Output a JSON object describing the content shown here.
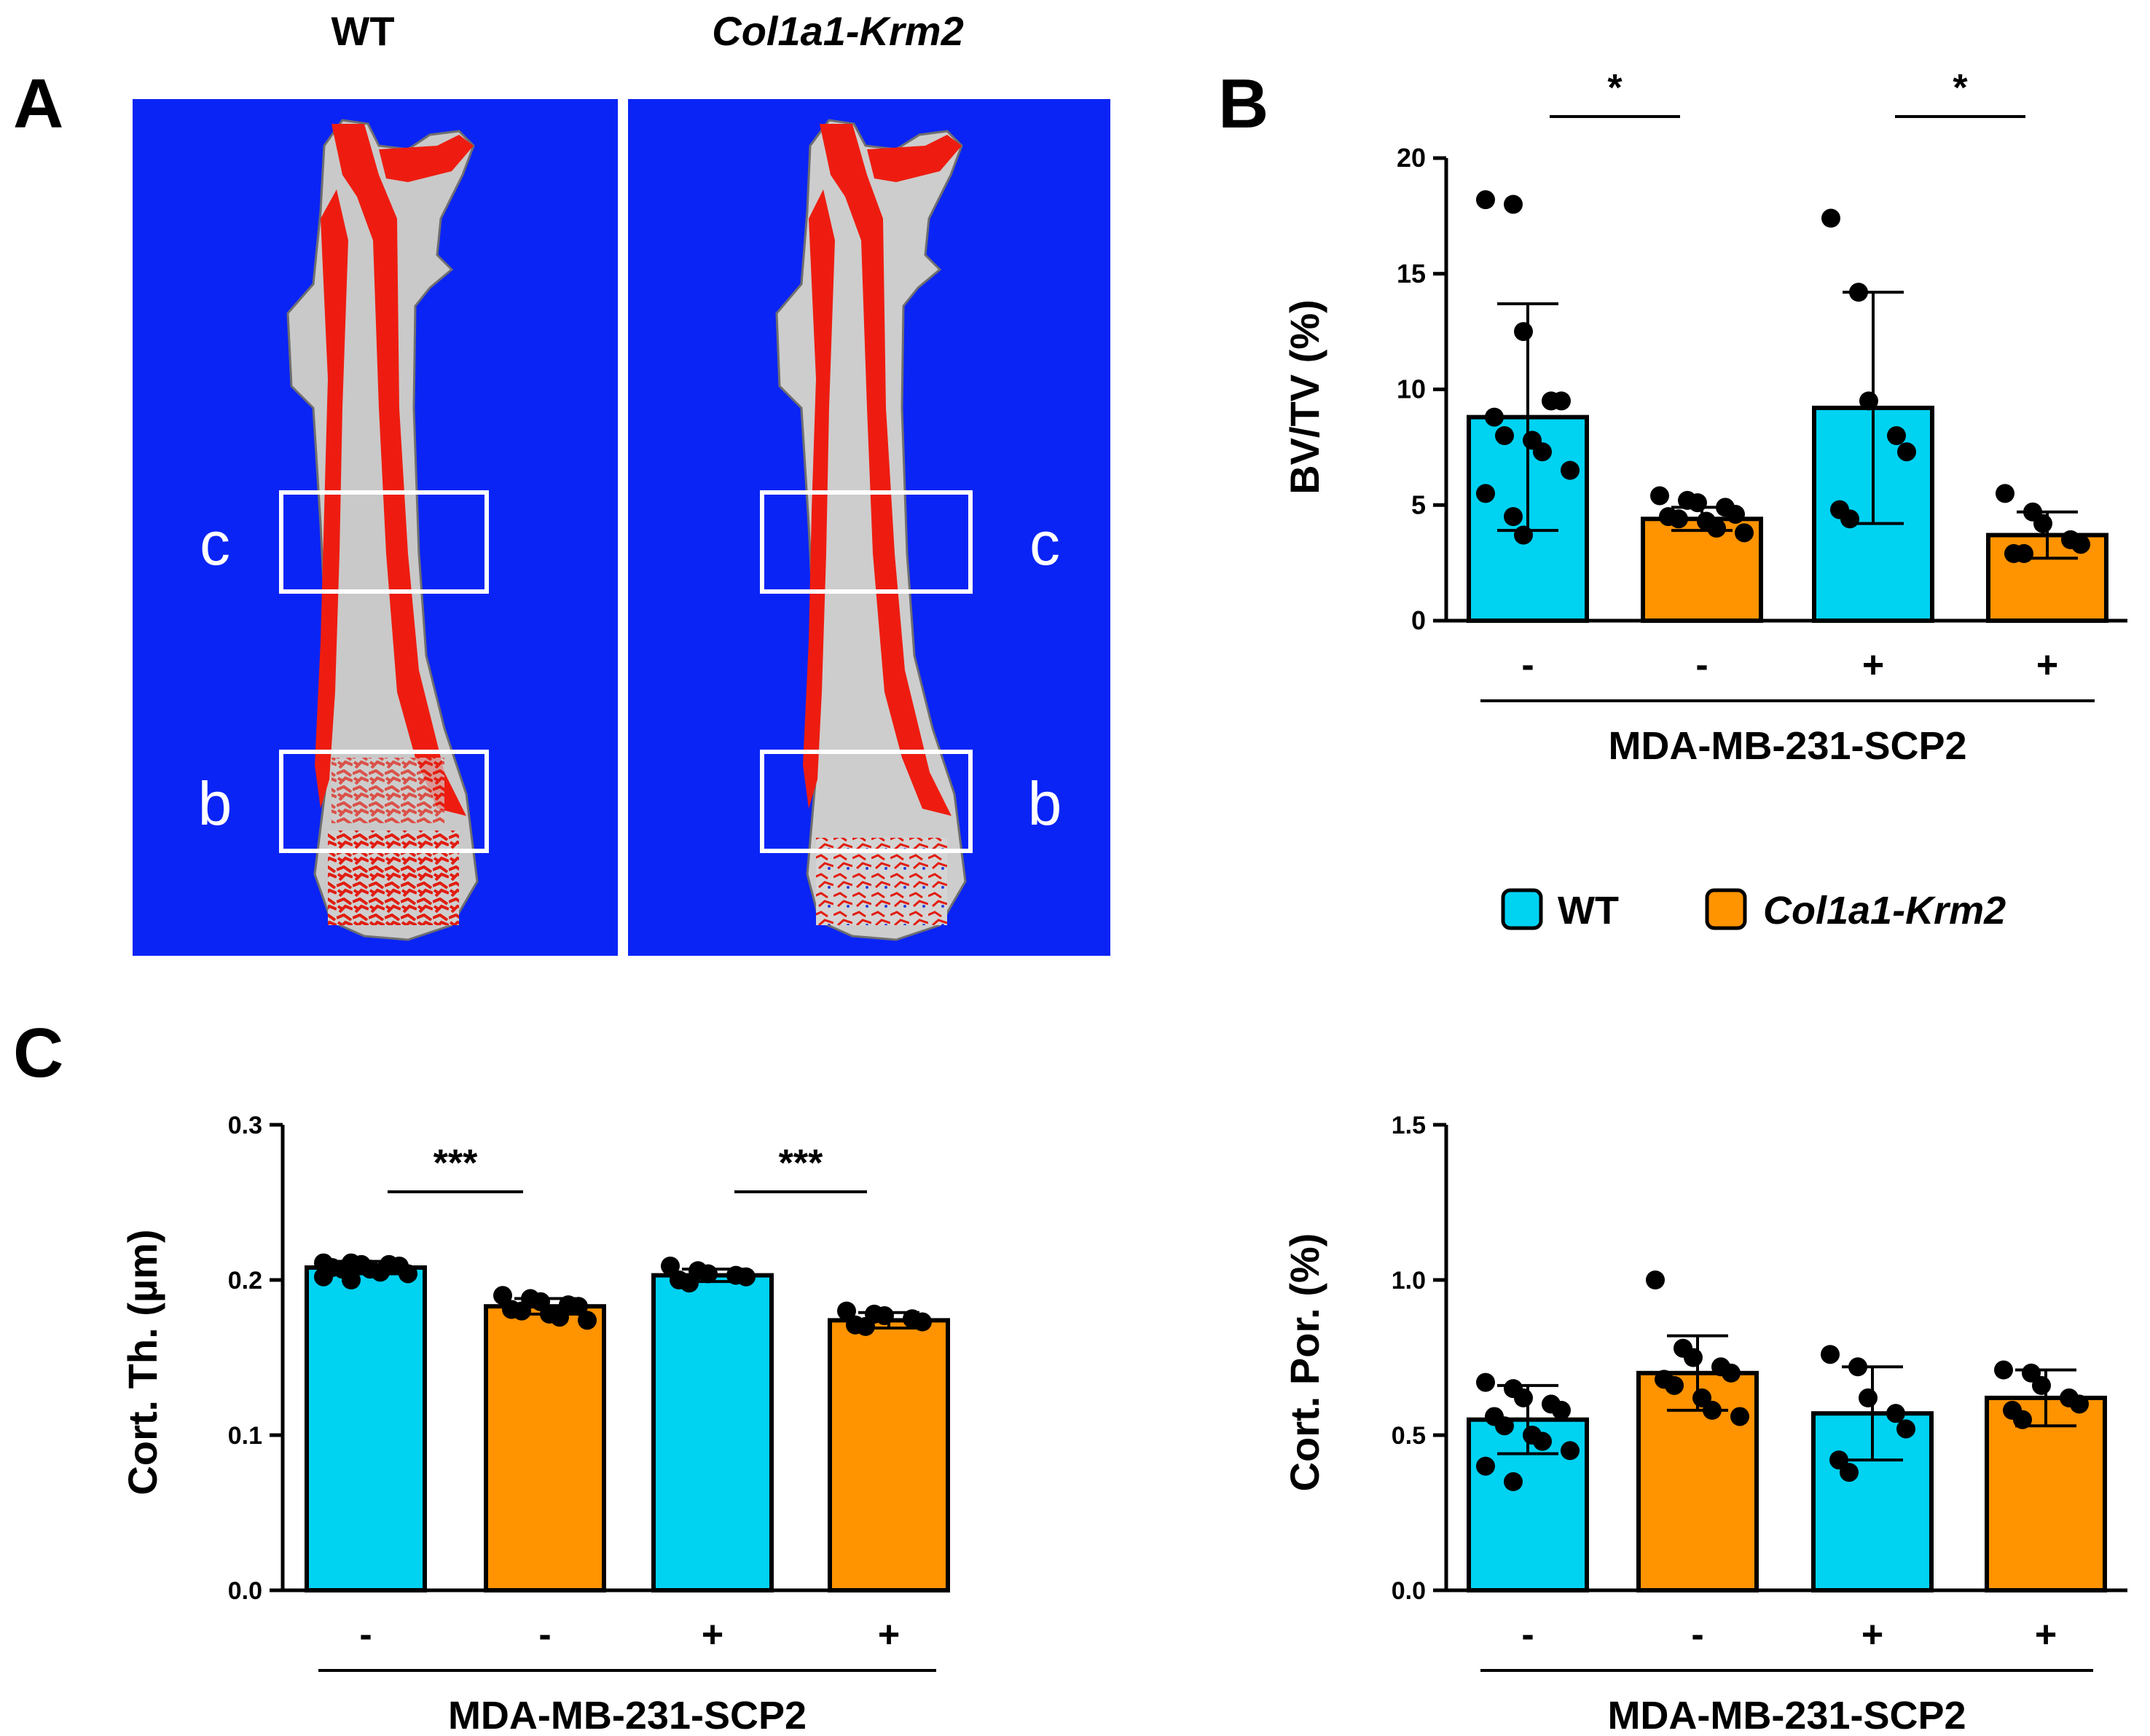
{
  "colors": {
    "wt": "#00d2f2",
    "krm2": "#ff9300",
    "scan_bg": "#0a24f5",
    "cortex": "#ee1c10",
    "bone": "#d9d9d9",
    "roi": "#ffffff"
  },
  "panel_a": {
    "letter": "A",
    "left_title": "WT",
    "right_title": "Col1a1-Krm2",
    "roi_c": "c",
    "roi_b": "b"
  },
  "panel_b_letter": "B",
  "panel_c_letter": "C",
  "legend": {
    "wt": "WT",
    "krm2": "Col1a1-Krm2"
  },
  "chart_data": [
    {
      "id": "bvtv",
      "type": "bar",
      "ylabel": "BV/TV (%)",
      "ylim": [
        0,
        20
      ],
      "yticks": [
        0,
        5,
        10,
        15,
        20
      ],
      "yticklabels": [
        "0",
        "5",
        "10",
        "15",
        "20"
      ],
      "categories": [
        "-",
        "-",
        "+",
        "+"
      ],
      "groups": [
        "wt",
        "krm2",
        "wt",
        "krm2"
      ],
      "xgroup_label": "MDA-MB-231-SCP2",
      "values": [
        8.8,
        4.4,
        9.2,
        3.7
      ],
      "errors": [
        4.9,
        0.5,
        5.0,
        1.0
      ],
      "points": [
        [
          18.2,
          18.0,
          12.5,
          9.5,
          9.5,
          8.8,
          8.0,
          7.8,
          7.3,
          6.5,
          5.5,
          4.5,
          3.7
        ],
        [
          5.4,
          5.2,
          5.1,
          4.9,
          4.6,
          4.5,
          4.4,
          4.3,
          4.0,
          3.8
        ],
        [
          17.4,
          14.2,
          9.5,
          8.0,
          7.3,
          4.8,
          4.4
        ],
        [
          5.5,
          4.7,
          4.2,
          3.5,
          3.3,
          2.9,
          2.9
        ]
      ],
      "significance": [
        {
          "pair": [
            0,
            1
          ],
          "label": "*"
        },
        {
          "pair": [
            2,
            3
          ],
          "label": "*"
        }
      ]
    },
    {
      "id": "ctth",
      "type": "bar",
      "ylabel": "Cort. Th. (µm)",
      "ylim": [
        0,
        0.3
      ],
      "yticks": [
        0,
        0.1,
        0.2,
        0.3
      ],
      "yticklabels": [
        "0.0",
        "0.1",
        "0.2",
        "0.3"
      ],
      "categories": [
        "-",
        "-",
        "+",
        "+"
      ],
      "groups": [
        "wt",
        "krm2",
        "wt",
        "krm2"
      ],
      "xgroup_label": "MDA-MB-231-SCP2",
      "values": [
        0.208,
        0.183,
        0.203,
        0.174
      ],
      "errors": [
        0.004,
        0.005,
        0.004,
        0.005
      ],
      "points": [
        [
          0.211,
          0.211,
          0.21,
          0.21,
          0.209,
          0.208,
          0.207,
          0.207,
          0.205,
          0.204,
          0.202,
          0.2
        ],
        [
          0.19,
          0.188,
          0.186,
          0.184,
          0.183,
          0.181,
          0.18,
          0.178,
          0.176,
          0.174
        ],
        [
          0.209,
          0.206,
          0.204,
          0.203,
          0.202,
          0.2,
          0.198
        ],
        [
          0.18,
          0.178,
          0.177,
          0.175,
          0.173,
          0.171,
          0.17
        ]
      ],
      "significance": [
        {
          "pair": [
            0,
            1
          ],
          "label": "***"
        },
        {
          "pair": [
            2,
            3
          ],
          "label": "***"
        }
      ]
    },
    {
      "id": "ctpo",
      "type": "bar",
      "ylabel": "Cort. Por. (%)",
      "ylim": [
        0,
        1.5
      ],
      "yticks": [
        0,
        0.5,
        1.0,
        1.5
      ],
      "yticklabels": [
        "0.0",
        "0.5",
        "1.0",
        "1.5"
      ],
      "categories": [
        "-",
        "-",
        "+",
        "+"
      ],
      "groups": [
        "wt",
        "krm2",
        "wt",
        "krm2"
      ],
      "xgroup_label": "MDA-MB-231-SCP2",
      "values": [
        0.55,
        0.7,
        0.57,
        0.62
      ],
      "errors": [
        0.11,
        0.12,
        0.15,
        0.09
      ],
      "points": [
        [
          0.67,
          0.65,
          0.62,
          0.6,
          0.58,
          0.56,
          0.53,
          0.5,
          0.48,
          0.45,
          0.4,
          0.35
        ],
        [
          1.0,
          0.78,
          0.75,
          0.72,
          0.7,
          0.68,
          0.66,
          0.62,
          0.58,
          0.56
        ],
        [
          0.76,
          0.72,
          0.62,
          0.57,
          0.52,
          0.42,
          0.38
        ],
        [
          0.71,
          0.7,
          0.66,
          0.62,
          0.6,
          0.58,
          0.55
        ]
      ],
      "significance": []
    }
  ]
}
